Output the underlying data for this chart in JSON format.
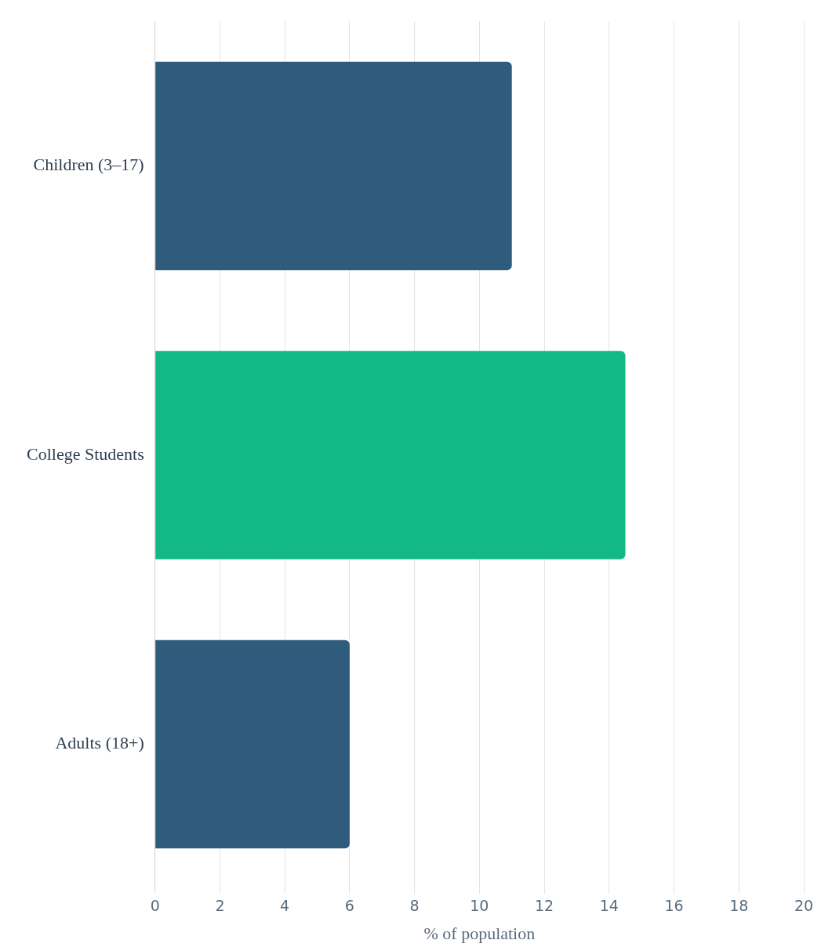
{
  "chart_data": {
    "type": "bar",
    "orientation": "horizontal",
    "categories": [
      "Children (3–17)",
      "College Students",
      "Adults (18+)"
    ],
    "values": [
      11,
      14.5,
      6
    ],
    "colors": [
      "#2f5b7c",
      "#12b886",
      "#2f5b7c"
    ],
    "xlabel": "% of population",
    "xlim": [
      0,
      20
    ],
    "xticks": [
      0,
      2,
      4,
      6,
      8,
      10,
      12,
      14,
      16,
      18,
      20
    ],
    "grid": "x",
    "legend": false
  }
}
